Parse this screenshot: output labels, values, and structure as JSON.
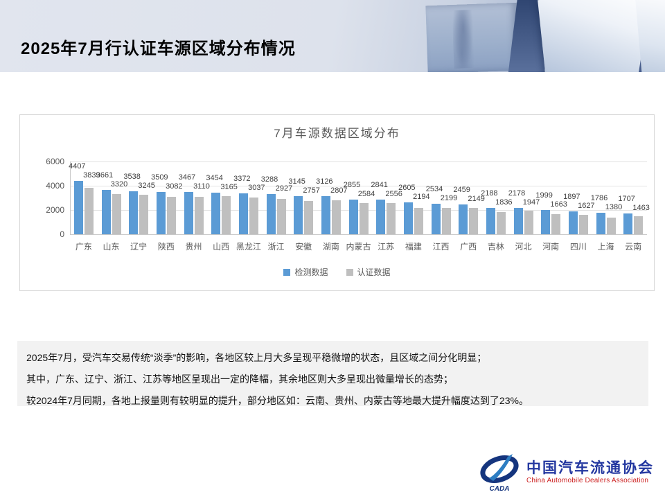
{
  "header": {
    "title": "2025年7月行认证车源区域分布情况"
  },
  "chart_data": {
    "type": "bar",
    "title": "7月车源数据区域分布",
    "categories": [
      "广东",
      "山东",
      "辽宁",
      "陕西",
      "贵州",
      "山西",
      "黑龙江",
      "浙江",
      "安徽",
      "湖南",
      "内蒙古",
      "江苏",
      "福建",
      "江西",
      "广西",
      "吉林",
      "河北",
      "河南",
      "四川",
      "上海",
      "云南"
    ],
    "series": [
      {
        "name": "检测数据",
        "color": "#5B9BD5",
        "values": [
          4407,
          3661,
          3538,
          3509,
          3467,
          3454,
          3372,
          3288,
          3145,
          3126,
          2855,
          2841,
          2605,
          2534,
          2459,
          2188,
          2178,
          1999,
          1897,
          1786,
          1707
        ]
      },
      {
        "name": "认证数据",
        "color": "#BFBFBF",
        "values": [
          3839,
          3320,
          3245,
          3082,
          3110,
          3165,
          3037,
          2927,
          2757,
          2807,
          2584,
          2556,
          2194,
          2199,
          2149,
          1836,
          1947,
          1663,
          1627,
          1380,
          1463
        ]
      }
    ],
    "xlabel": "",
    "ylabel": "",
    "ylim": [
      0,
      6000
    ],
    "yticks": [
      0,
      2000,
      4000,
      6000
    ],
    "grid": true,
    "legend_position": "bottom",
    "data_labels": true
  },
  "summary": {
    "lines": [
      "2025年7月，受汽车交易传统“淡季”的影响，各地区较上月大多呈现平稳微增的状态，且区域之间分化明显；",
      "其中，广东、辽宁、浙江、江苏等地区呈现出一定的降幅，其余地区则大多呈现出微量增长的态势；",
      "较2024年7月同期，各地上报量则有较明显的提升，部分地区如：云南、贵州、内蒙古等地最大提升幅度达到了23%。"
    ]
  },
  "logo": {
    "emblem_text": "CADA",
    "name_cn": "中国汽车流通协会",
    "name_en": "China Automobile Dealers Association",
    "blue": "#2438a0",
    "red": "#cc1f1f"
  }
}
